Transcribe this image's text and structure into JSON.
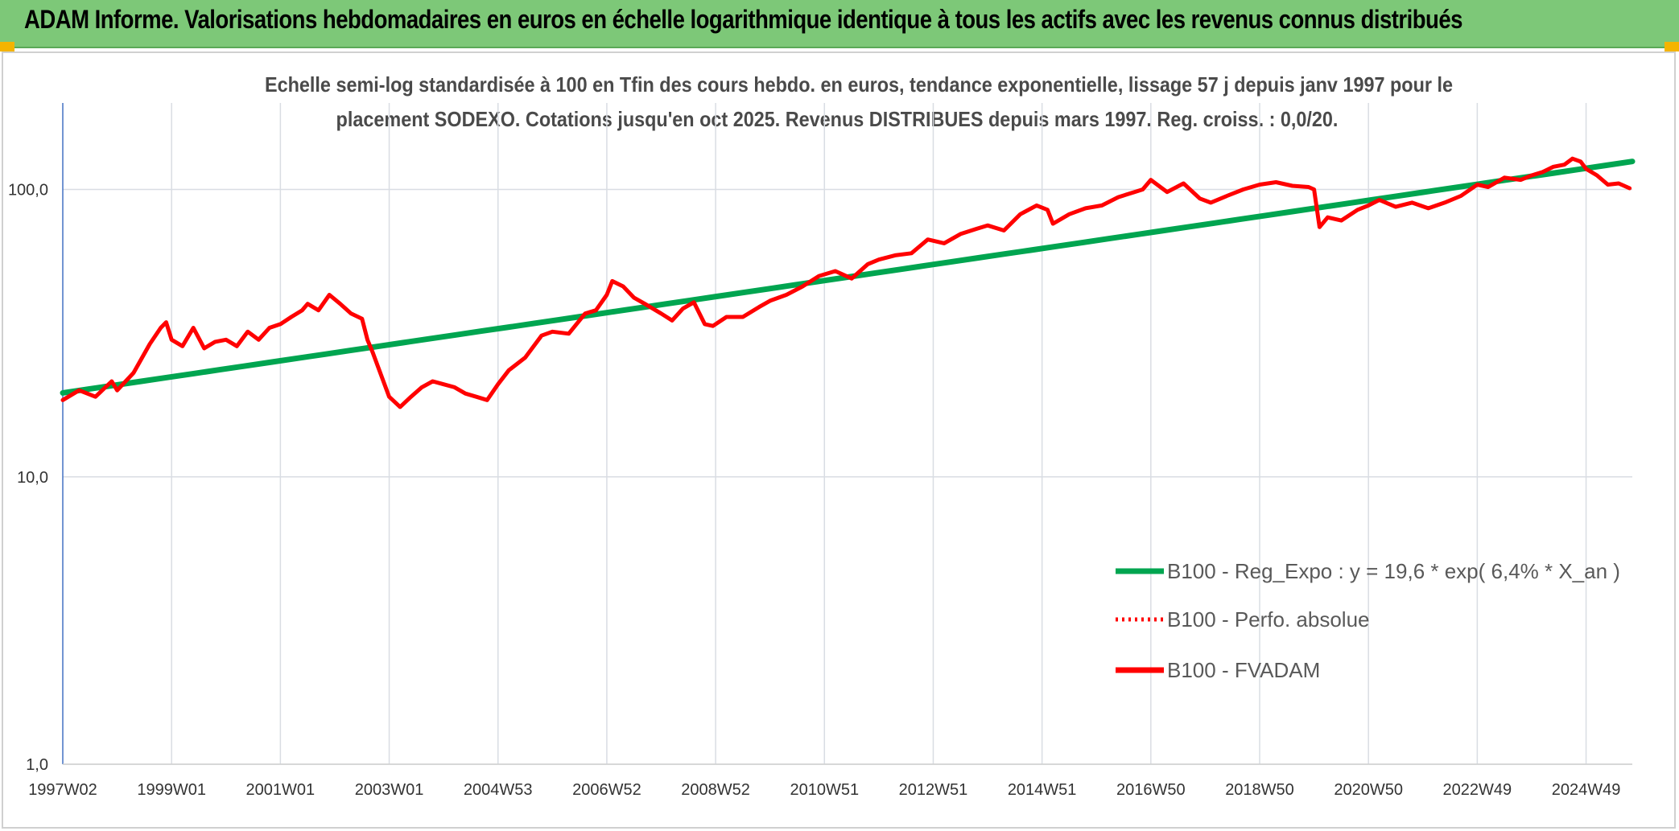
{
  "header": {
    "title": "ADAM Informe. Valorisations hebdomadaires en euros en échelle logarithmique identique à tous les actifs avec les revenus connus distribués"
  },
  "chart_data": {
    "type": "line",
    "title_line1": "Echelle semi-log standardisée à 100 en Tfin des cours hebdo. en euros, tendance exponentielle, lissage 57 j depuis janv 1997 pour le",
    "title_line2": "placement SODEXO. Cotations jusqu'en oct 2025. Revenus DISTRIBUES depuis mars 1997. Reg. croiss. : 0,0/20.",
    "xlabel": "",
    "ylabel": "",
    "y_scale": "log",
    "ylim": [
      1,
      200
    ],
    "xlim": [
      1997.0,
      2025.85
    ],
    "grid": true,
    "legend_position": "right-middle",
    "y_ticks": [
      {
        "value": 1,
        "label": "1,0"
      },
      {
        "value": 10,
        "label": "10,0"
      },
      {
        "value": 100,
        "label": "100,0"
      }
    ],
    "x_ticks": [
      {
        "year": 1997.0,
        "label": "1997W02"
      },
      {
        "year": 1999.0,
        "label": "1999W01"
      },
      {
        "year": 2001.0,
        "label": "2001W01"
      },
      {
        "year": 2003.0,
        "label": "2003W01"
      },
      {
        "year": 2005.0,
        "label": "2004W53"
      },
      {
        "year": 2007.0,
        "label": "2006W52"
      },
      {
        "year": 2009.0,
        "label": "2008W52"
      },
      {
        "year": 2011.0,
        "label": "2010W51"
      },
      {
        "year": 2013.0,
        "label": "2012W51"
      },
      {
        "year": 2015.0,
        "label": "2014W51"
      },
      {
        "year": 2017.0,
        "label": "2016W50"
      },
      {
        "year": 2019.0,
        "label": "2018W50"
      },
      {
        "year": 2021.0,
        "label": "2020W50"
      },
      {
        "year": 2023.0,
        "label": "2022W49"
      },
      {
        "year": 2025.0,
        "label": "2024W49"
      }
    ],
    "series": [
      {
        "name": "B100 - Reg_Expo : y = 19,6 * exp( 6,4% *  X_an )",
        "color": "#00a550",
        "style": "solid",
        "x": [
          1997.0,
          2025.85
        ],
        "y": [
          19.6,
          125.2
        ]
      },
      {
        "name": "B100 - Perfo. absolue",
        "color": "#ff0000",
        "style": "dotted",
        "x": [],
        "y": []
      },
      {
        "name": "B100 - FVADAM",
        "color": "#ff0000",
        "style": "solid",
        "x": [
          1997.0,
          1997.3,
          1997.6,
          1997.9,
          1998.0,
          1998.3,
          1998.6,
          1998.8,
          1998.9,
          1999.0,
          1999.2,
          1999.4,
          1999.6,
          1999.8,
          2000.0,
          2000.2,
          2000.4,
          2000.6,
          2000.8,
          2001.0,
          2001.2,
          2001.4,
          2001.5,
          2001.7,
          2001.9,
          2002.1,
          2002.3,
          2002.5,
          2002.6,
          2002.7,
          2002.8,
          2003.0,
          2003.2,
          2003.4,
          2003.6,
          2003.8,
          2004.0,
          2004.2,
          2004.4,
          2004.6,
          2004.8,
          2005.0,
          2005.2,
          2005.5,
          2005.8,
          2006.0,
          2006.3,
          2006.6,
          2006.8,
          2007.0,
          2007.1,
          2007.3,
          2007.5,
          2007.7,
          2008.0,
          2008.2,
          2008.4,
          2008.6,
          2008.8,
          2008.95,
          2009.2,
          2009.5,
          2009.8,
          2010.0,
          2010.3,
          2010.6,
          2010.9,
          2011.2,
          2011.5,
          2011.8,
          2012.0,
          2012.3,
          2012.6,
          2012.9,
          2013.2,
          2013.5,
          2013.8,
          2014.0,
          2014.3,
          2014.6,
          2014.9,
          2015.1,
          2015.2,
          2015.5,
          2015.8,
          2016.1,
          2016.4,
          2016.7,
          2016.85,
          2017.0,
          2017.3,
          2017.6,
          2017.9,
          2018.1,
          2018.4,
          2018.7,
          2019.0,
          2019.3,
          2019.6,
          2019.9,
          2020.0,
          2020.1,
          2020.25,
          2020.5,
          2020.8,
          2021.0,
          2021.2,
          2021.5,
          2021.8,
          2022.1,
          2022.4,
          2022.7,
          2023.0,
          2023.2,
          2023.5,
          2023.8,
          2024.0,
          2024.2,
          2024.4,
          2024.6,
          2024.75,
          2024.9,
          2025.0,
          2025.2,
          2025.4,
          2025.6,
          2025.8
        ],
        "y": [
          18.5,
          20.0,
          19.0,
          21.5,
          20.0,
          23.0,
          29.0,
          33.0,
          34.5,
          30.0,
          28.5,
          33.0,
          28.0,
          29.5,
          30.0,
          28.5,
          32.0,
          30.0,
          33.0,
          34.0,
          36.0,
          38.0,
          40.0,
          38.0,
          43.0,
          40.0,
          37.0,
          35.5,
          30.0,
          27.0,
          24.0,
          19.0,
          17.5,
          19.0,
          20.5,
          21.5,
          21.0,
          20.5,
          19.5,
          19.0,
          18.5,
          21.0,
          23.5,
          26.0,
          31.0,
          32.0,
          31.5,
          37.0,
          38.0,
          43.0,
          48.0,
          46.0,
          42.0,
          40.0,
          37.0,
          35.0,
          38.5,
          40.5,
          34.0,
          33.5,
          36.0,
          36.0,
          39.0,
          41.0,
          43.0,
          46.0,
          50.0,
          52.0,
          49.0,
          55.0,
          57.0,
          59.0,
          60.0,
          67.0,
          65.0,
          70.0,
          73.0,
          75.0,
          72.0,
          82.0,
          88.0,
          85.0,
          76.0,
          82.0,
          86.0,
          88.0,
          94.0,
          98.0,
          100.0,
          108.0,
          98.0,
          105.0,
          93.0,
          90.0,
          95.0,
          100.0,
          104.0,
          106.0,
          103.0,
          102.0,
          100.0,
          74.0,
          80.0,
          78.0,
          85.0,
          88.0,
          92.0,
          87.0,
          90.0,
          86.0,
          90.0,
          95.0,
          104.0,
          102.0,
          110.0,
          108.0,
          112.0,
          115.0,
          120.0,
          122.0,
          128.0,
          125.0,
          118.0,
          112.0,
          104.0,
          105.0,
          101.0
        ]
      }
    ]
  }
}
